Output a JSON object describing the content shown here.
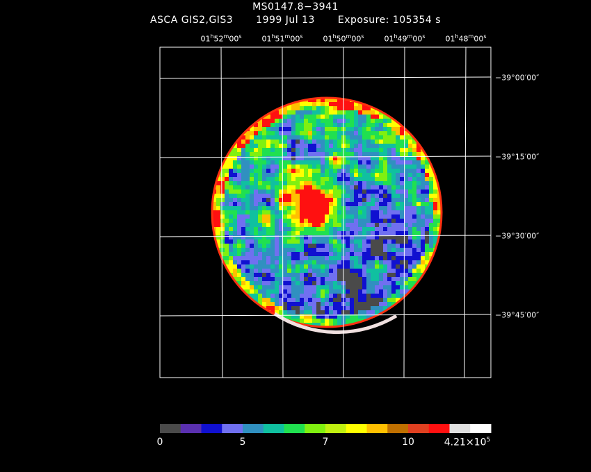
{
  "header": {
    "object": "MS0147.8−3941",
    "instrument": "ASCA GIS2,GIS3",
    "date": "1999 Jul 13",
    "exposure": "Exposure: 105354 s"
  },
  "axes": {
    "ra_ticks": [
      {
        "h": "01",
        "m": "52",
        "s": "00"
      },
      {
        "h": "01",
        "m": "51",
        "s": "00"
      },
      {
        "h": "01",
        "m": "50",
        "s": "00"
      },
      {
        "h": "01",
        "m": "49",
        "s": "00"
      },
      {
        "h": "01",
        "m": "48",
        "s": "00"
      }
    ],
    "dec_ticks": [
      "−39°00′00″",
      "−39°15′00″",
      "−39°30′00″",
      "−39°45′00″"
    ]
  },
  "colorbar": {
    "colors": [
      "#4a4a4a",
      "#5a30b0",
      "#1010d0",
      "#7070f0",
      "#3090c0",
      "#10c0a0",
      "#20e050",
      "#80f010",
      "#c0f010",
      "#ffff00",
      "#ffc000",
      "#c07000",
      "#e04020",
      "#ff1010",
      "#e0e0e0",
      "#ffffff"
    ],
    "labels": [
      "0",
      "5",
      "7",
      "10"
    ],
    "max_label_mantissa": "4.21×10",
    "max_label_exp": "5"
  }
}
